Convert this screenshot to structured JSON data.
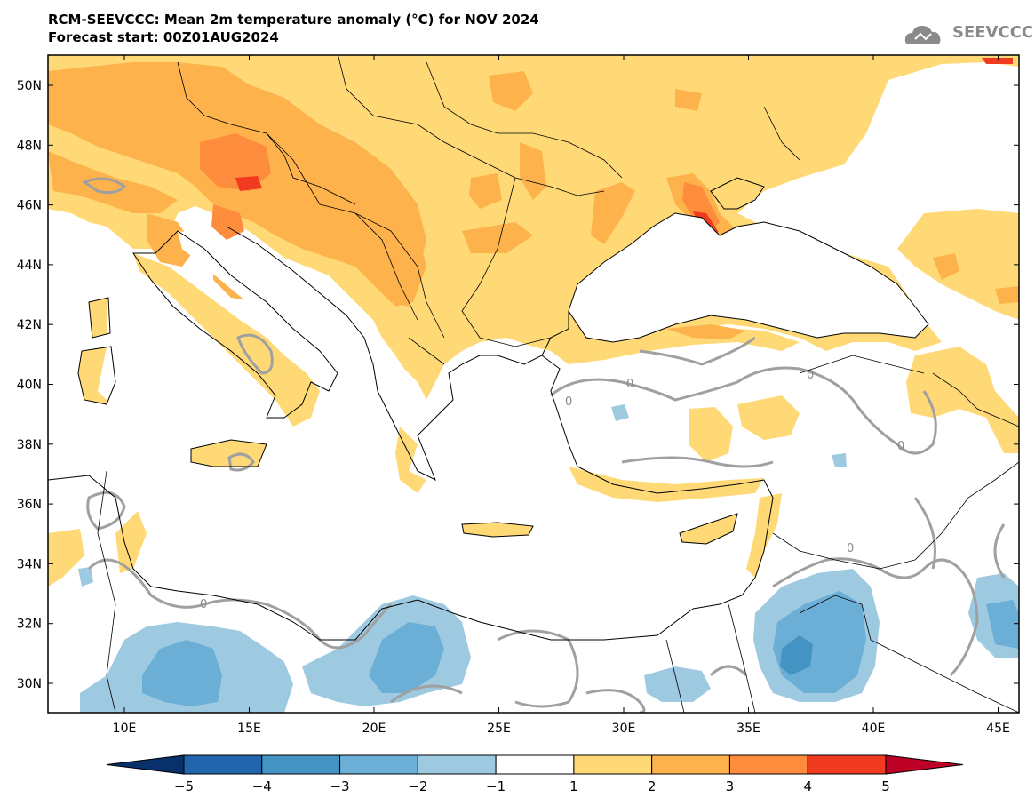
{
  "header": {
    "title_line1": "RCM-SEEVCCC: Mean 2m temperature anomaly (°C) for NOV 2024",
    "title_line2": "Forecast start: 00Z01AUG2024",
    "logo_text": "SEEVCCC"
  },
  "axes": {
    "lat_labels": [
      "50N",
      "48N",
      "46N",
      "44N",
      "42N",
      "40N",
      "38N",
      "36N",
      "34N",
      "32N",
      "30N"
    ],
    "lon_labels": [
      "10E",
      "15E",
      "20E",
      "25E",
      "30E",
      "35E",
      "40E",
      "45E"
    ]
  },
  "contour_label": "0",
  "colorbar": {
    "ticks": [
      "−5",
      "−4",
      "−3",
      "−2",
      "−1",
      "1",
      "2",
      "3",
      "4",
      "5"
    ],
    "colors": [
      "#08306b",
      "#2166ac",
      "#4393c3",
      "#6baed6",
      "#9ecae1",
      "#ffffff",
      "#fed976",
      "#feb24c",
      "#fd8d3c",
      "#f03b20",
      "#bd0026"
    ]
  },
  "palette": {
    "anom_1_2": "#fed976",
    "anom_2_3": "#feb24c",
    "anom_3_4": "#fd8d3c",
    "anom_4_5": "#f03b20",
    "anom_m1_m2": "#9ecae1",
    "anom_m2_m3": "#6baed6",
    "anom_m3_m4": "#4393c3",
    "contour_zero": "#a0a0a0",
    "coastline": "#000000"
  }
}
